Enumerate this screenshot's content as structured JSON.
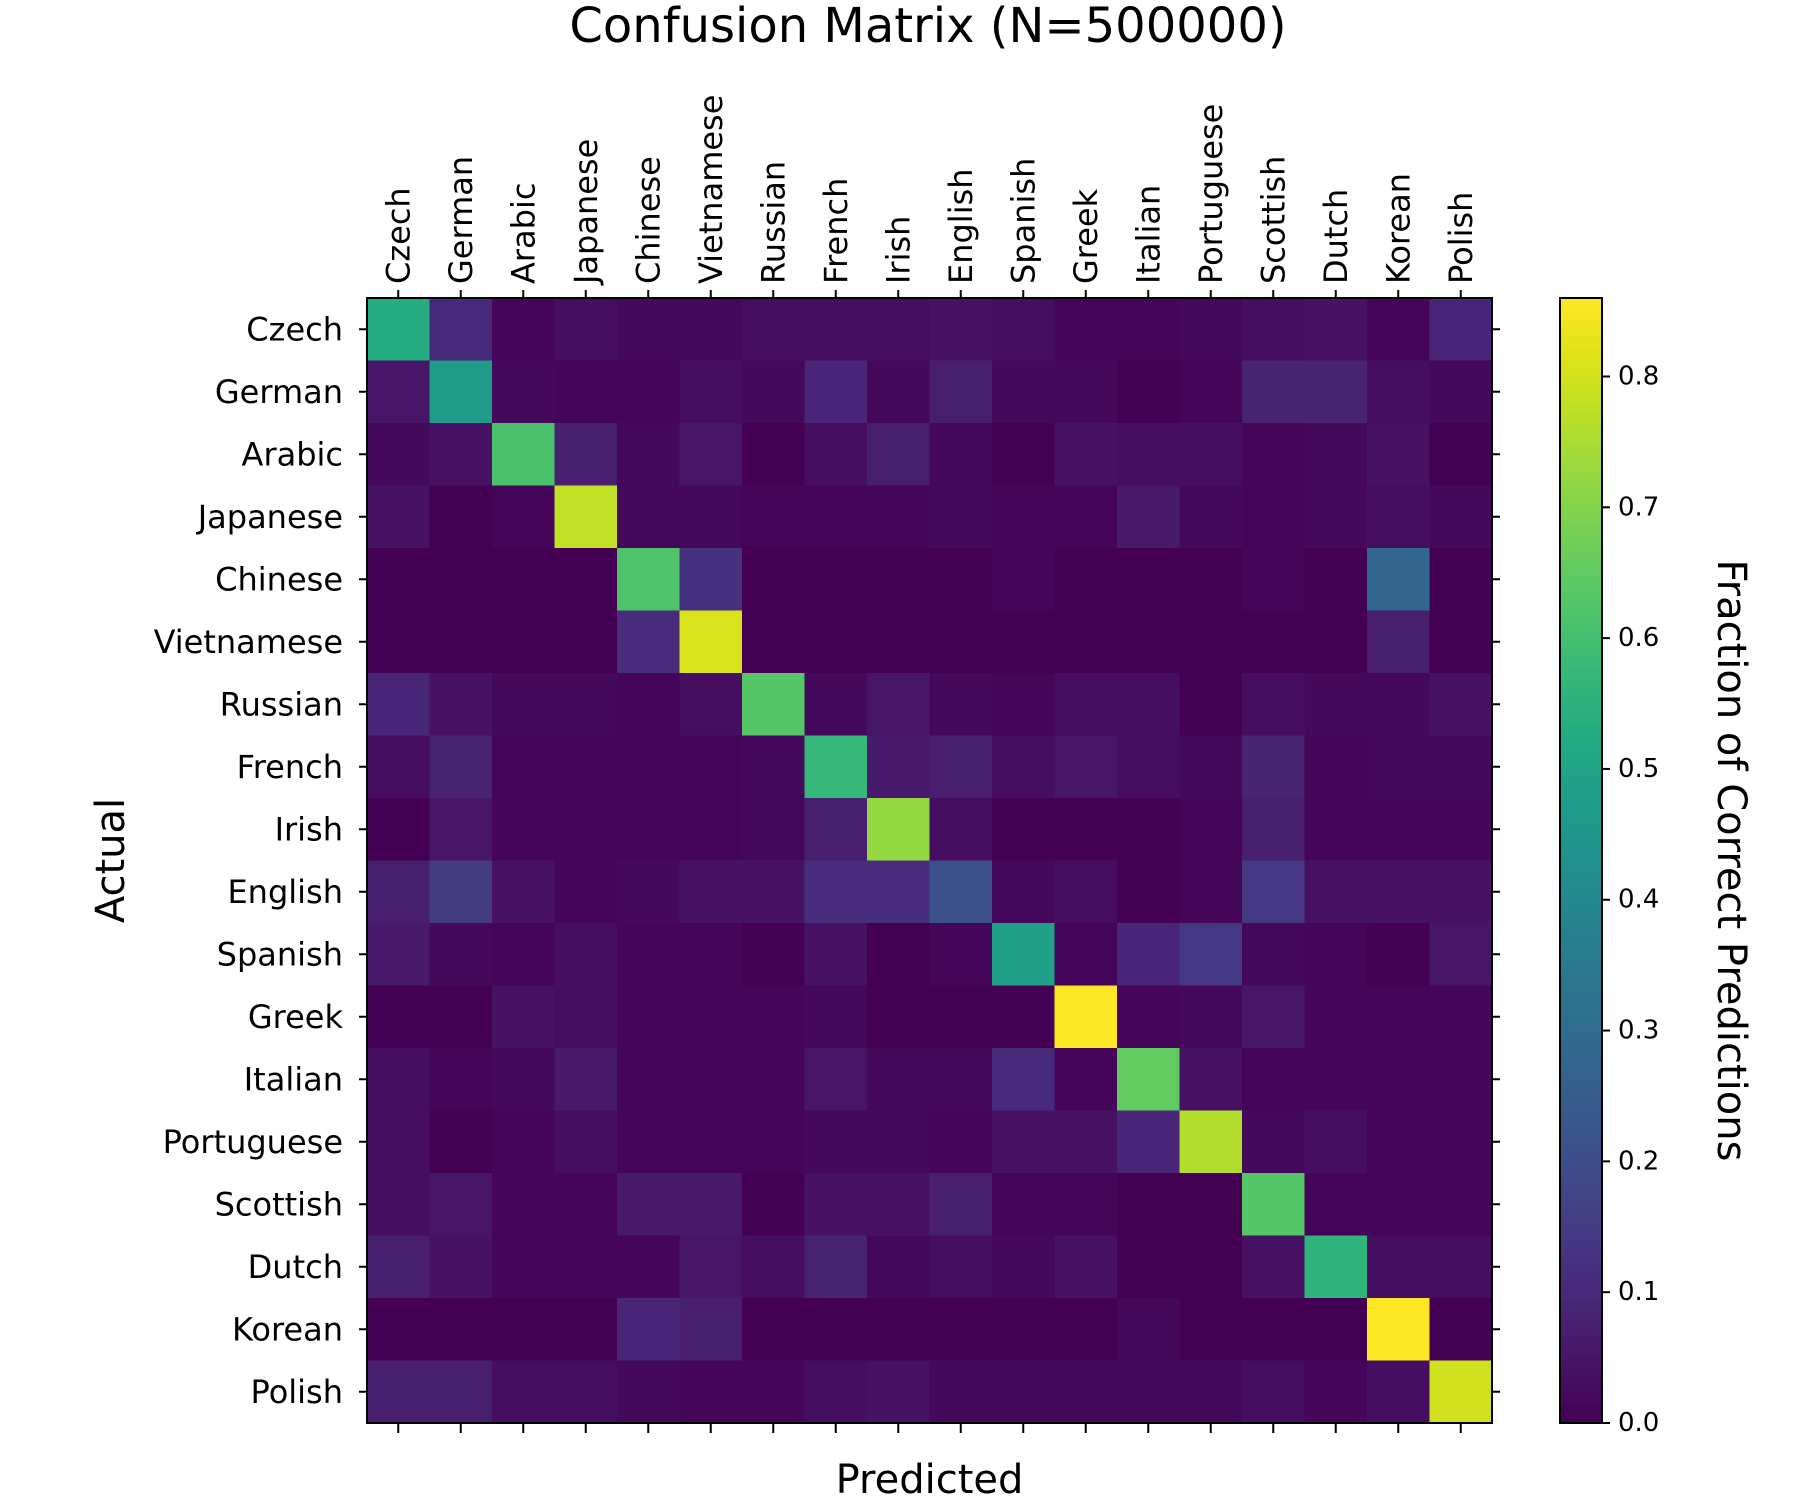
{
  "chart_data": {
    "type": "heatmap",
    "title": "Confusion Matrix (N=500000)",
    "xlabel": "Predicted",
    "ylabel": "Actual",
    "x_tick_position": "top",
    "categories": [
      "Czech",
      "German",
      "Arabic",
      "Japanese",
      "Chinese",
      "Vietnamese",
      "Russian",
      "French",
      "Irish",
      "English",
      "Spanish",
      "Greek",
      "Italian",
      "Portuguese",
      "Scottish",
      "Dutch",
      "Korean",
      "Polish"
    ],
    "colorbar": {
      "label": "Fraction of Correct Predictions",
      "colormap": "viridis",
      "range": [
        0,
        0.86
      ],
      "ticks": [
        0.0,
        0.1,
        0.2,
        0.3,
        0.4,
        0.5,
        0.6,
        0.7,
        0.8
      ],
      "tick_labels": [
        "0.0",
        "0.1",
        "0.2",
        "0.3",
        "0.4",
        "0.5",
        "0.6",
        "0.7",
        "0.8"
      ]
    },
    "matrix": [
      [
        0.53,
        0.1,
        0.01,
        0.03,
        0.02,
        0.02,
        0.03,
        0.03,
        0.03,
        0.04,
        0.03,
        0.01,
        0.01,
        0.02,
        0.03,
        0.04,
        0.01,
        0.09
      ],
      [
        0.05,
        0.47,
        0.02,
        0.01,
        0.01,
        0.03,
        0.02,
        0.09,
        0.02,
        0.07,
        0.02,
        0.02,
        0.0,
        0.01,
        0.08,
        0.08,
        0.03,
        0.02
      ],
      [
        0.02,
        0.04,
        0.61,
        0.07,
        0.02,
        0.05,
        0.0,
        0.03,
        0.07,
        0.02,
        0.0,
        0.04,
        0.03,
        0.03,
        0.01,
        0.02,
        0.04,
        0.0
      ],
      [
        0.04,
        0.0,
        0.01,
        0.78,
        0.02,
        0.02,
        0.01,
        0.01,
        0.01,
        0.02,
        0.01,
        0.01,
        0.06,
        0.02,
        0.01,
        0.02,
        0.03,
        0.02
      ],
      [
        0.0,
        0.0,
        0.0,
        0.0,
        0.62,
        0.12,
        0.0,
        0.0,
        0.0,
        0.0,
        0.01,
        0.0,
        0.0,
        0.0,
        0.01,
        0.0,
        0.28,
        0.0
      ],
      [
        0.0,
        0.0,
        0.0,
        0.0,
        0.11,
        0.81,
        0.0,
        0.0,
        0.0,
        0.0,
        0.0,
        0.0,
        0.0,
        0.0,
        0.0,
        0.0,
        0.07,
        0.0
      ],
      [
        0.09,
        0.04,
        0.02,
        0.02,
        0.01,
        0.03,
        0.63,
        0.02,
        0.05,
        0.02,
        0.01,
        0.03,
        0.03,
        0.0,
        0.03,
        0.02,
        0.02,
        0.04
      ],
      [
        0.03,
        0.08,
        0.01,
        0.01,
        0.01,
        0.01,
        0.02,
        0.57,
        0.06,
        0.07,
        0.03,
        0.05,
        0.03,
        0.02,
        0.08,
        0.01,
        0.02,
        0.02
      ],
      [
        0.0,
        0.05,
        0.01,
        0.01,
        0.01,
        0.01,
        0.02,
        0.07,
        0.72,
        0.03,
        0.0,
        0.0,
        0.0,
        0.01,
        0.07,
        0.01,
        0.01,
        0.01
      ],
      [
        0.07,
        0.15,
        0.04,
        0.01,
        0.02,
        0.04,
        0.04,
        0.11,
        0.11,
        0.21,
        0.02,
        0.03,
        0.0,
        0.01,
        0.14,
        0.04,
        0.04,
        0.04
      ],
      [
        0.06,
        0.02,
        0.01,
        0.03,
        0.01,
        0.01,
        0.0,
        0.04,
        0.0,
        0.01,
        0.49,
        0.01,
        0.09,
        0.14,
        0.02,
        0.01,
        0.0,
        0.05
      ],
      [
        0.0,
        0.0,
        0.04,
        0.03,
        0.01,
        0.01,
        0.01,
        0.02,
        0.0,
        0.0,
        0.0,
        0.86,
        0.01,
        0.02,
        0.05,
        0.01,
        0.01,
        0.01
      ],
      [
        0.03,
        0.01,
        0.02,
        0.06,
        0.01,
        0.01,
        0.01,
        0.05,
        0.02,
        0.02,
        0.1,
        0.01,
        0.65,
        0.04,
        0.01,
        0.01,
        0.01,
        0.01
      ],
      [
        0.03,
        0.0,
        0.01,
        0.03,
        0.01,
        0.01,
        0.01,
        0.02,
        0.02,
        0.01,
        0.04,
        0.04,
        0.09,
        0.76,
        0.02,
        0.03,
        0.01,
        0.01
      ],
      [
        0.03,
        0.05,
        0.01,
        0.01,
        0.06,
        0.06,
        0.0,
        0.04,
        0.04,
        0.07,
        0.01,
        0.01,
        0.0,
        0.0,
        0.63,
        0.01,
        0.01,
        0.01
      ],
      [
        0.07,
        0.04,
        0.01,
        0.01,
        0.01,
        0.05,
        0.03,
        0.08,
        0.02,
        0.03,
        0.02,
        0.04,
        0.0,
        0.0,
        0.04,
        0.56,
        0.03,
        0.03
      ],
      [
        0.0,
        0.0,
        0.0,
        0.0,
        0.09,
        0.07,
        0.0,
        0.0,
        0.0,
        0.0,
        0.0,
        0.0,
        0.02,
        0.0,
        0.0,
        0.0,
        0.86,
        0.0
      ],
      [
        0.07,
        0.07,
        0.03,
        0.03,
        0.02,
        0.01,
        0.01,
        0.03,
        0.04,
        0.02,
        0.02,
        0.02,
        0.02,
        0.02,
        0.03,
        0.01,
        0.03,
        0.8
      ]
    ]
  }
}
